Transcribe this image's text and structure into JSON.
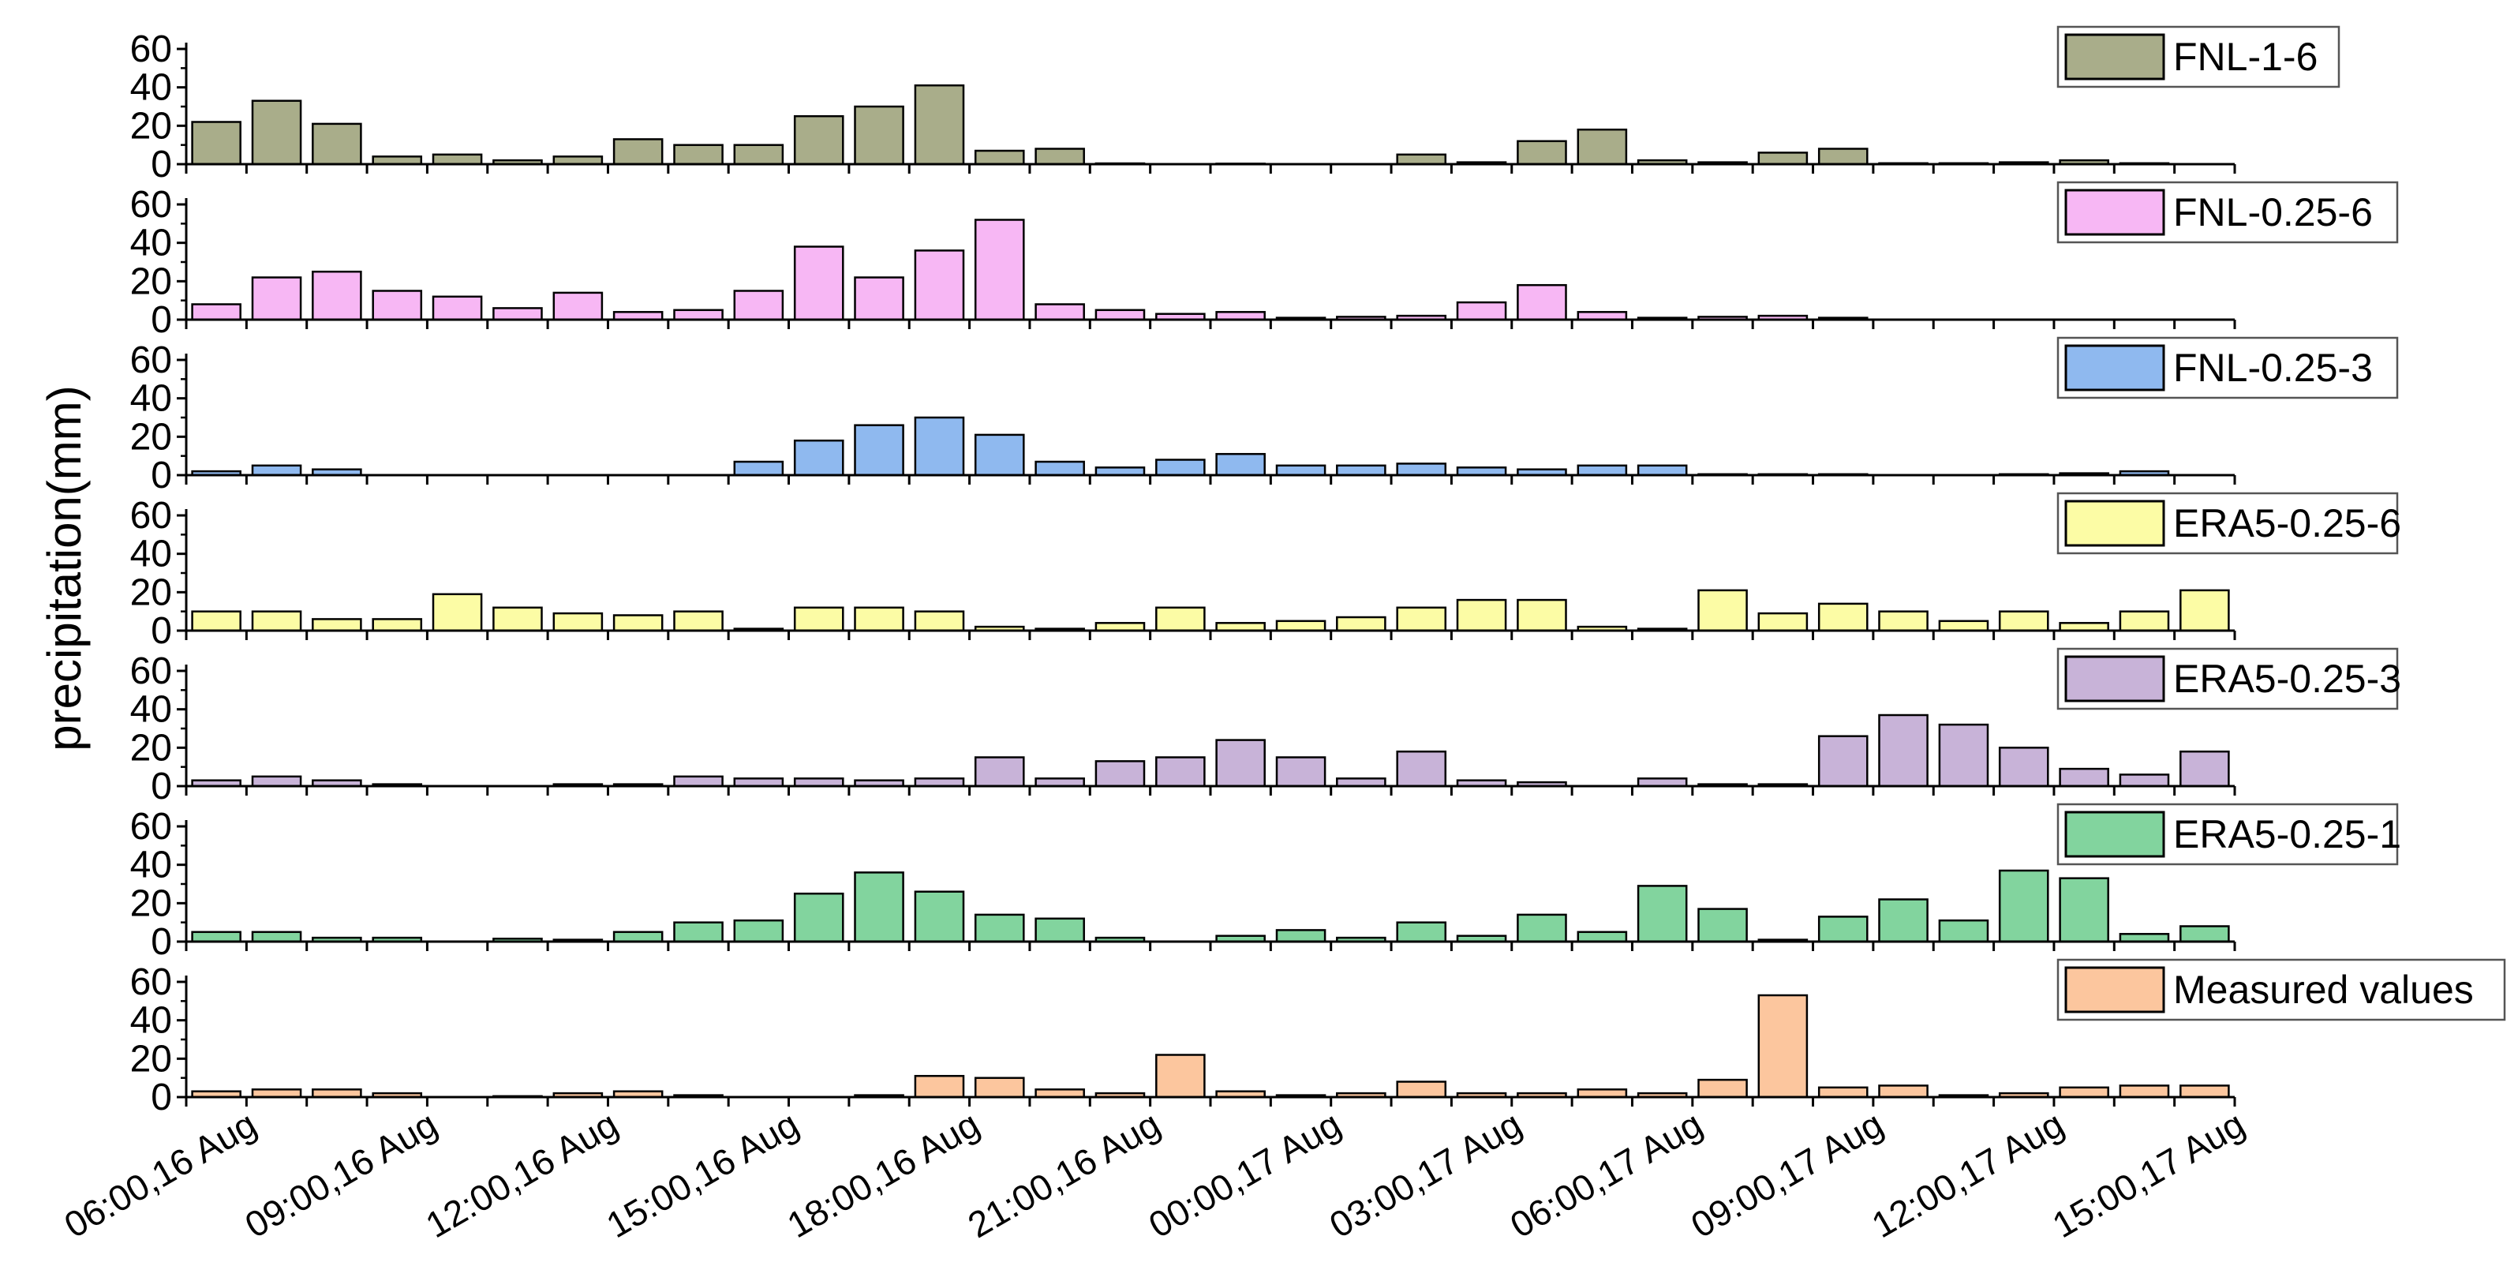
{
  "chart_data": {
    "type": "bar",
    "ylabel": "precipitation(mm)",
    "xlabel": "",
    "ylim": [
      0,
      60
    ],
    "yticks": [
      "0",
      "20",
      "40",
      "60"
    ],
    "ytick_values": [
      0,
      20,
      40,
      60
    ],
    "time_steps": 34,
    "x_tick_labels": [
      "06:00,16 Aug",
      "09:00,16 Aug",
      "12:00,16 Aug",
      "15:00,16 Aug",
      "18:00,16 Aug",
      "21:00,16 Aug",
      "00:00,17 Aug",
      "03:00,17 Aug",
      "06:00,17 Aug",
      "09:00,17 Aug",
      "12:00,17 Aug",
      "15:00,17 Aug"
    ],
    "series": [
      {
        "name": "FNL-1-6",
        "color": "#a9ad8a",
        "values": [
          22,
          33,
          21,
          4,
          5,
          2,
          4,
          13,
          10,
          10,
          25,
          30,
          41,
          7,
          8,
          0.4,
          0,
          0.3,
          0,
          0,
          5,
          1,
          12,
          18,
          2,
          1,
          6,
          8,
          0.5,
          0.5,
          1,
          2,
          0.5,
          0
        ]
      },
      {
        "name": "FNL-0.25-6",
        "color": "#f7b7f4",
        "values": [
          8,
          22,
          25,
          15,
          12,
          6,
          14,
          4,
          5,
          15,
          38,
          22,
          36,
          52,
          8,
          5,
          3,
          4,
          1,
          1.5,
          2,
          9,
          18,
          4,
          1,
          1.5,
          2,
          1,
          0,
          0,
          0,
          0,
          0,
          0
        ]
      },
      {
        "name": "FNL-0.25-3",
        "color": "#8fb9ef",
        "values": [
          2,
          5,
          3,
          0,
          0,
          0,
          0,
          0,
          0,
          7,
          18,
          26,
          30,
          21,
          7,
          4,
          8,
          11,
          5,
          5,
          6,
          4,
          3,
          5,
          5,
          0.5,
          0.5,
          0.5,
          0,
          0,
          0.5,
          1,
          2,
          0
        ]
      },
      {
        "name": "ERA5-0.25-6",
        "color": "#fcfca5",
        "values": [
          10,
          10,
          6,
          6,
          19,
          12,
          9,
          8,
          10,
          1,
          12,
          12,
          10,
          2,
          1,
          4,
          12,
          4,
          5,
          7,
          12,
          16,
          16,
          2,
          1,
          21,
          9,
          14,
          10,
          5,
          10,
          4,
          10,
          21
        ]
      },
      {
        "name": "ERA5-0.25-3",
        "color": "#c8b3d8",
        "values": [
          3,
          5,
          3,
          1,
          0,
          0,
          1,
          1,
          5,
          4,
          4,
          3,
          4,
          15,
          4,
          13,
          15,
          24,
          15,
          4,
          18,
          3,
          2,
          0,
          4,
          1,
          1,
          26,
          37,
          32,
          20,
          9,
          6,
          18
        ]
      },
      {
        "name": "ERA5-0.25-1",
        "color": "#82d49e",
        "values": [
          5,
          5,
          2,
          2,
          0,
          1.5,
          1,
          5,
          10,
          11,
          25,
          36,
          26,
          14,
          12,
          2,
          0,
          3,
          6,
          2,
          10,
          3,
          14,
          5,
          29,
          17,
          1,
          13,
          22,
          11,
          37,
          33,
          4,
          8
        ]
      },
      {
        "name": "Measured values",
        "color": "#fcc69e",
        "values": [
          3,
          4,
          4,
          2,
          0,
          0.5,
          2,
          3,
          1,
          0,
          0,
          1,
          11,
          10,
          4,
          2,
          22,
          3,
          1,
          2,
          8,
          2,
          2,
          4,
          2,
          9,
          53,
          5,
          6,
          1,
          2,
          5,
          6,
          6
        ]
      }
    ]
  }
}
